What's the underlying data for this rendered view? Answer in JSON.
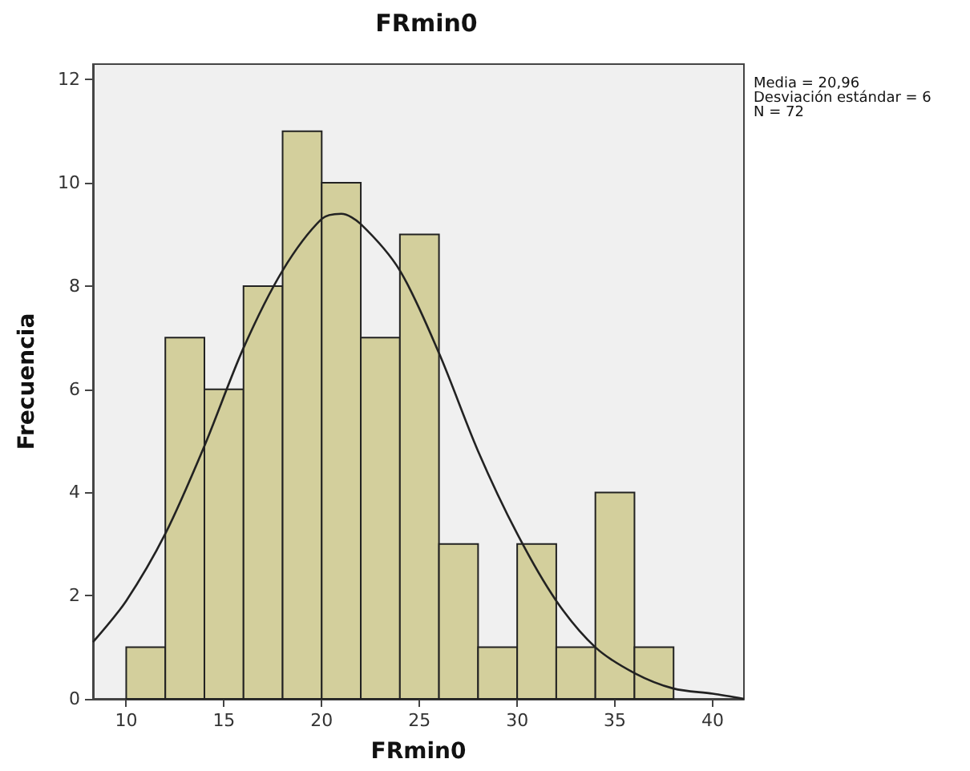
{
  "chart_data": {
    "type": "histogram",
    "title": "FRmin0",
    "xlabel": "FRmin0",
    "ylabel": "Frecuencia",
    "bins": [
      10,
      12,
      14,
      16,
      18,
      20,
      22,
      24,
      26,
      28,
      30,
      32,
      34,
      36,
      38
    ],
    "values": [
      1,
      7,
      6,
      8,
      11,
      10,
      7,
      9,
      3,
      1,
      3,
      1,
      4,
      1
    ],
    "color": "#d3cf9c",
    "series": [
      {
        "type": "line",
        "color": "#222222",
        "x": [
          8.3,
          10,
          12,
          14,
          16,
          18,
          20,
          21,
          22,
          24,
          26,
          28,
          30,
          32,
          34,
          36,
          38,
          40,
          41.6
        ],
        "values": [
          1.1,
          1.9,
          3.2,
          4.9,
          6.8,
          8.3,
          9.3,
          9.4,
          9.2,
          8.3,
          6.7,
          4.8,
          3.2,
          1.9,
          1.0,
          0.5,
          0.2,
          0.1,
          0.0
        ]
      }
    ],
    "xlim": [
      8.3,
      41.6
    ],
    "xticks": [
      10,
      15,
      20,
      25,
      30,
      35,
      40
    ],
    "ylim": [
      0,
      12.3
    ],
    "yticks": [
      0,
      2,
      4,
      6,
      8,
      10,
      12
    ],
    "annotations": [
      "Media = 20,96",
      "Desviación estándar = 6",
      "N = 72"
    ]
  }
}
